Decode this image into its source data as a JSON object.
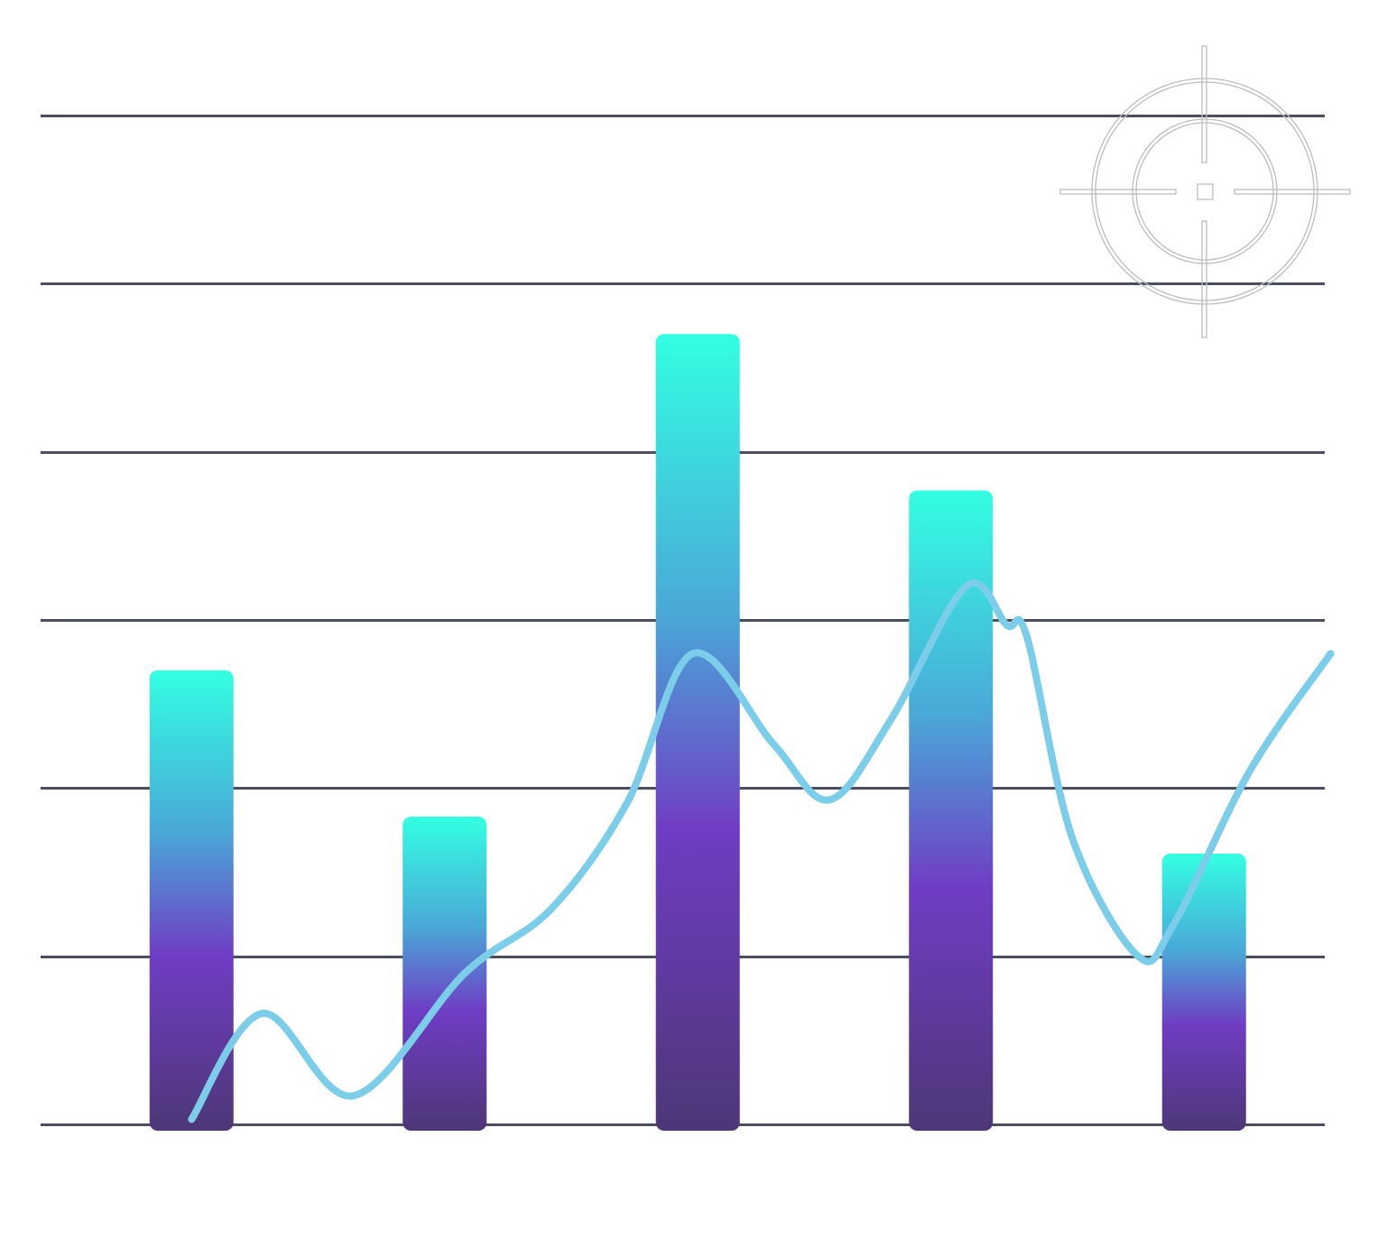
{
  "chart_data": {
    "type": "bar",
    "categories": [
      "",
      "",
      "",
      "",
      ""
    ],
    "series": [
      {
        "values": [
          2.7,
          1.83,
          4.7,
          3.77,
          1.61
        ]
      }
    ],
    "overlay_line": {
      "points": [
        [
          0.0,
          0.03
        ],
        [
          0.28,
          0.66
        ],
        [
          0.64,
          0.17
        ],
        [
          1.08,
          0.9
        ],
        [
          1.42,
          1.28
        ],
        [
          1.72,
          1.91
        ],
        [
          1.98,
          2.8
        ],
        [
          2.3,
          2.26
        ],
        [
          2.52,
          1.93
        ],
        [
          2.76,
          2.4
        ],
        [
          3.06,
          3.2
        ],
        [
          3.22,
          2.97
        ],
        [
          3.3,
          2.9
        ],
        [
          3.48,
          1.7
        ],
        [
          3.74,
          1.0
        ],
        [
          3.88,
          1.19
        ],
        [
          4.18,
          2.1
        ],
        [
          4.5,
          2.8
        ]
      ]
    },
    "ylim": [
      0,
      6
    ],
    "gridlines": [
      0,
      1,
      2,
      3,
      4,
      5,
      6
    ],
    "grid": true,
    "legend": "none",
    "colors": {
      "bar_top": "#33ffe2",
      "bar_mid_upper": "#4aa8d8",
      "bar_mid": "#6f3dc4",
      "bar_bottom": "#4e3777",
      "line": "#7bcde9",
      "grid": "#4a4e5e"
    },
    "decoration": {
      "icon": "crosshair-icon"
    }
  }
}
